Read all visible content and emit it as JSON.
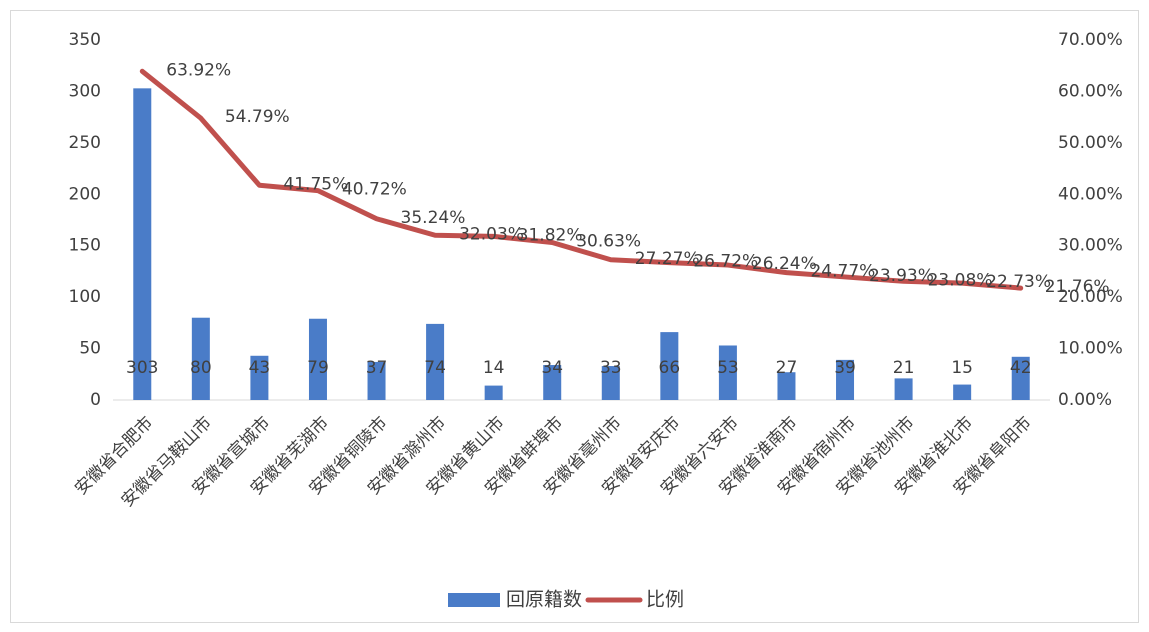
{
  "chart_data": {
    "type": "bar-line",
    "categories": [
      "安徽省合肥市",
      "安徽省马鞍山市",
      "安徽省宣城市",
      "安徽省芜湖市",
      "安徽省铜陵市",
      "安徽省滁州市",
      "安徽省黄山市",
      "安徽省蚌埠市",
      "安徽省亳州市",
      "安徽省安庆市",
      "安徽省六安市",
      "安徽省淮南市",
      "安徽省宿州市",
      "安徽省池州市",
      "安徽省淮北市",
      "安徽省阜阳市"
    ],
    "series": [
      {
        "name": "回原籍数",
        "color": "#4a7cc8",
        "type": "bar",
        "values": [
          303,
          80,
          43,
          79,
          37,
          74,
          14,
          34,
          33,
          66,
          53,
          27,
          39,
          21,
          15,
          42
        ]
      },
      {
        "name": "比例",
        "color": "#c0504d",
        "type": "line",
        "axis": "y2",
        "values": [
          63.92,
          54.79,
          41.75,
          40.72,
          35.24,
          32.03,
          31.82,
          30.63,
          27.27,
          26.72,
          26.24,
          24.77,
          23.93,
          23.08,
          22.73,
          21.76
        ],
        "value_labels": [
          "63.92%",
          "54.79%",
          "41.75%",
          "40.72%",
          "35.24%",
          "32.03%",
          "31.82%",
          "30.63%",
          "27.27%",
          "26.72%",
          "26.24%",
          "24.77%",
          "23.93%",
          "23.08%",
          "22.73%",
          "21.76%"
        ]
      }
    ],
    "ylim": [
      0,
      350
    ],
    "yticks": [
      0,
      50,
      100,
      150,
      200,
      250,
      300,
      350
    ],
    "y2lim": [
      0,
      70
    ],
    "y2ticks": [
      {
        "value": 0,
        "label": "0.00%"
      },
      {
        "value": 10,
        "label": "10.00%"
      },
      {
        "value": 20,
        "label": "20.00%"
      },
      {
        "value": 30,
        "label": "30.00%"
      },
      {
        "value": 40,
        "label": "40.00%"
      },
      {
        "value": 50,
        "label": "50.00%"
      },
      {
        "value": 60,
        "label": "60.00%"
      },
      {
        "value": 70,
        "label": "70.00%"
      }
    ],
    "grid": false,
    "legend": "bottom"
  }
}
